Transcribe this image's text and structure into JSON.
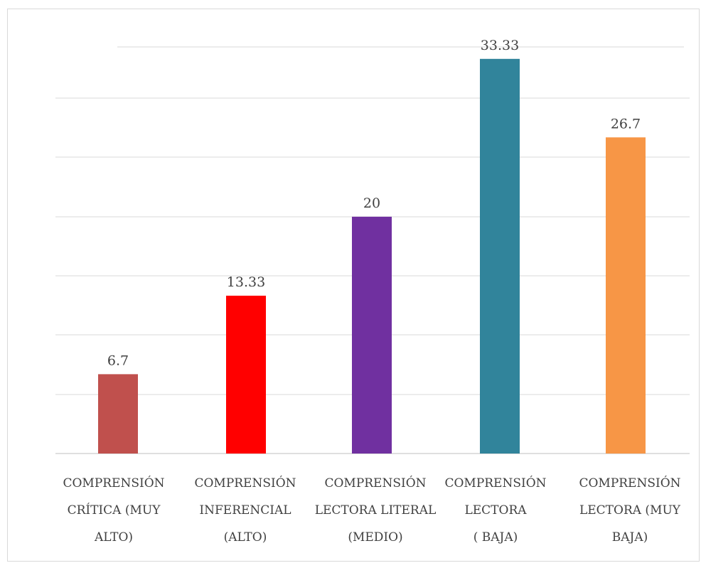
{
  "chart_data": {
    "type": "bar",
    "categories": [
      [
        "COMPRENSIÓN",
        "CRÍTICA (MUY",
        "ALTO)"
      ],
      [
        "COMPRENSIÓN",
        "INFERENCIAL",
        "(ALTO)"
      ],
      [
        "COMPRENSIÓN",
        "LECTORA LITERAL",
        "(MEDIO)"
      ],
      [
        "COMPRENSIÓN",
        "LECTORA",
        "( BAJA)"
      ],
      [
        "COMPRENSIÓN",
        "LECTORA (MUY",
        "BAJA)"
      ]
    ],
    "values": [
      6.7,
      13.33,
      20,
      33.33,
      26.7
    ],
    "value_labels": [
      "6.7",
      "13.33",
      "20",
      "33.33",
      "26.7"
    ],
    "colors": [
      "#c0504d",
      "#ff0000",
      "#7030a0",
      "#31849b",
      "#f79646"
    ],
    "ylim": [
      0,
      35
    ],
    "grid": true,
    "legend": "none"
  }
}
